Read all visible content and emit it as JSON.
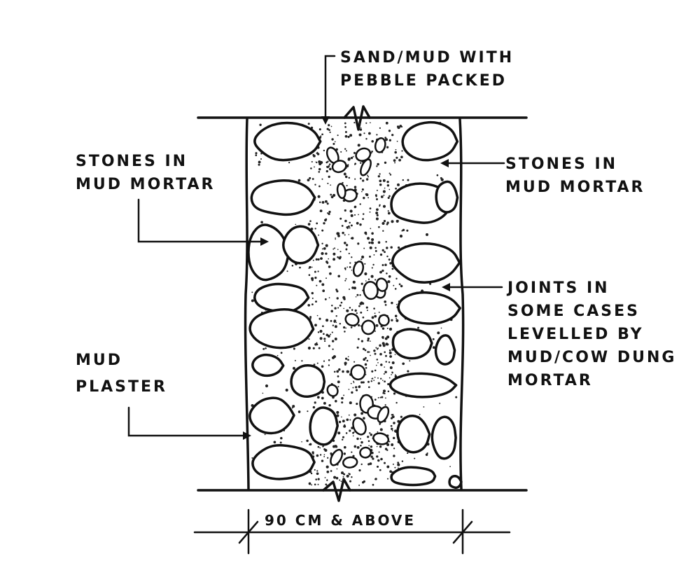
{
  "labels": {
    "top_fill": [
      "SAND/MUD WITH",
      "PEBBLE PACKED"
    ],
    "stones_left": [
      "STONES IN",
      "MUD MORTAR"
    ],
    "stones_right": [
      "STONES IN",
      "MUD MORTAR"
    ],
    "joints": [
      "JOINTS IN",
      "SOME CASES",
      "LEVELLED BY",
      "MUD/COW DUNG",
      "MORTAR"
    ],
    "plaster": [
      "MUD",
      "PLASTER"
    ],
    "thickness": "90 CM & ABOVE"
  },
  "colors": {
    "ink": "#111111",
    "paper": "#ffffff"
  }
}
